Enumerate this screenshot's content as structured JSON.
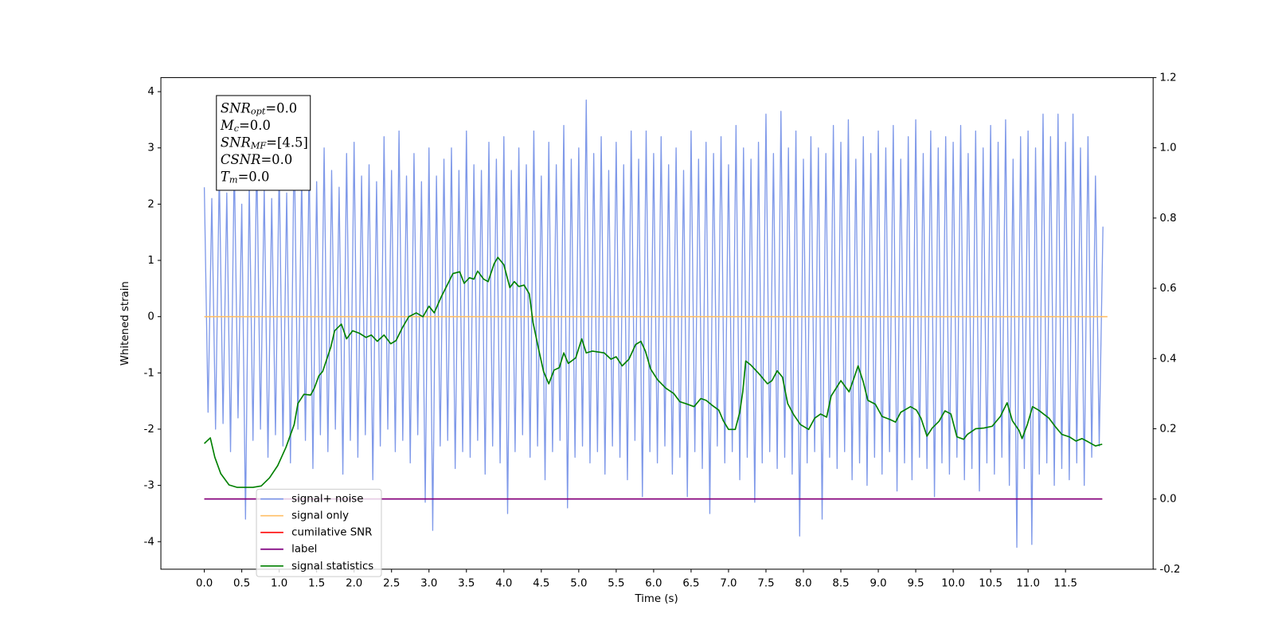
{
  "chart_data": {
    "type": "line",
    "xlabel": "Time (s)",
    "ylabel": "Whitened strain",
    "xlim": [
      -0.58,
      12.67
    ],
    "ylim": [
      -4.49,
      4.25
    ],
    "y2lim": [
      -0.2,
      1.2
    ],
    "xticks": [
      {
        "value": 0,
        "label": "0.0"
      },
      {
        "value": 0.5,
        "label": "0.5"
      },
      {
        "value": 1,
        "label": "1.0"
      },
      {
        "value": 1.5,
        "label": "1.5"
      },
      {
        "value": 2,
        "label": "2.0"
      },
      {
        "value": 2.5,
        "label": "2.5"
      },
      {
        "value": 3,
        "label": "3.0"
      },
      {
        "value": 3.5,
        "label": "3.5"
      },
      {
        "value": 4,
        "label": "4.0"
      },
      {
        "value": 4.5,
        "label": "4.5"
      },
      {
        "value": 5,
        "label": "5.0"
      },
      {
        "value": 5.5,
        "label": "5.5"
      },
      {
        "value": 6,
        "label": "6.0"
      },
      {
        "value": 6.5,
        "label": "6.5"
      },
      {
        "value": 7,
        "label": "7.0"
      },
      {
        "value": 7.5,
        "label": "7.5"
      },
      {
        "value": 8,
        "label": "8.0"
      },
      {
        "value": 8.5,
        "label": "8.5"
      },
      {
        "value": 9,
        "label": "9.0"
      },
      {
        "value": 9.5,
        "label": "9.5"
      },
      {
        "value": 10,
        "label": "10.0"
      },
      {
        "value": 10.5,
        "label": "10.5"
      },
      {
        "value": 11,
        "label": "11.0"
      },
      {
        "value": 11.5,
        "label": "11.5"
      }
    ],
    "yticks": [
      -4,
      -3,
      -2,
      -1,
      0,
      1,
      2,
      3,
      4
    ],
    "y2ticks": [
      -0.2,
      {
        "value": 0,
        "label": "0.0"
      },
      0.2,
      0.4,
      0.6,
      0.8,
      {
        "value": 1,
        "label": "1.0"
      },
      1.2
    ],
    "annotations": [
      {
        "symbol": "SNR",
        "subscript": "opt",
        "text": "=0.0"
      },
      {
        "symbol": "M",
        "subscript": "c",
        "text": "=0.0"
      },
      {
        "symbol": "SNR",
        "subscript": "MF",
        "text": "=[4.5]"
      },
      {
        "symbol": "CSNR",
        "text": "=0.0"
      },
      {
        "symbol": "T",
        "subscript": "m",
        "text": "=0.0"
      }
    ],
    "series": [
      {
        "name": "signal+ noise",
        "color": "#7893e8",
        "x": [
          0,
          0.05,
          0.1,
          0.15,
          0.2,
          0.25,
          0.3,
          0.35,
          0.4,
          0.45,
          0.5,
          0.55,
          0.6,
          0.65,
          0.7,
          0.75,
          0.8,
          0.85,
          0.9,
          0.95,
          1,
          1.05,
          1.1,
          1.15,
          1.2,
          1.25,
          1.3,
          1.35,
          1.4,
          1.45,
          1.5,
          1.55,
          1.6,
          1.65,
          1.7,
          1.75,
          1.8,
          1.85,
          1.9,
          1.95,
          2,
          2.05,
          2.1,
          2.15,
          2.2,
          2.25,
          2.3,
          2.35,
          2.4,
          2.45,
          2.5,
          2.55,
          2.6,
          2.65,
          2.7,
          2.75,
          2.8,
          2.85,
          2.9,
          2.95,
          3,
          3.05,
          3.1,
          3.15,
          3.2,
          3.25,
          3.3,
          3.35,
          3.4,
          3.45,
          3.5,
          3.55,
          3.6,
          3.65,
          3.7,
          3.75,
          3.8,
          3.85,
          3.9,
          3.95,
          4,
          4.05,
          4.1,
          4.15,
          4.2,
          4.25,
          4.3,
          4.35,
          4.4,
          4.45,
          4.5,
          4.55,
          4.6,
          4.65,
          4.7,
          4.75,
          4.8,
          4.85,
          4.9,
          4.95,
          5,
          5.05,
          5.1,
          5.15,
          5.2,
          5.25,
          5.3,
          5.35,
          5.4,
          5.45,
          5.5,
          5.55,
          5.6,
          5.65,
          5.7,
          5.75,
          5.8,
          5.85,
          5.9,
          5.95,
          6,
          6.05,
          6.1,
          6.15,
          6.2,
          6.25,
          6.3,
          6.35,
          6.4,
          6.45,
          6.5,
          6.55,
          6.6,
          6.65,
          6.7,
          6.75,
          6.8,
          6.85,
          6.9,
          6.95,
          7,
          7.05,
          7.1,
          7.15,
          7.2,
          7.25,
          7.3,
          7.35,
          7.4,
          7.45,
          7.5,
          7.55,
          7.6,
          7.65,
          7.7,
          7.75,
          7.8,
          7.85,
          7.9,
          7.95,
          8,
          8.05,
          8.1,
          8.15,
          8.2,
          8.25,
          8.3,
          8.35,
          8.4,
          8.45,
          8.5,
          8.55,
          8.6,
          8.65,
          8.7,
          8.75,
          8.8,
          8.85,
          8.9,
          8.95,
          9,
          9.05,
          9.1,
          9.15,
          9.2,
          9.25,
          9.3,
          9.35,
          9.4,
          9.45,
          9.5,
          9.55,
          9.6,
          9.65,
          9.7,
          9.75,
          9.8,
          9.85,
          9.9,
          9.95,
          10,
          10.05,
          10.1,
          10.15,
          10.2,
          10.25,
          10.3,
          10.35,
          10.4,
          10.45,
          10.5,
          10.55,
          10.6,
          10.65,
          10.7,
          10.75,
          10.8,
          10.85,
          10.9,
          10.95,
          11,
          11.05,
          11.1,
          11.15,
          11.2,
          11.25,
          11.3,
          11.35,
          11.4,
          11.45,
          11.5,
          11.55,
          11.6,
          11.65,
          11.7,
          11.75,
          11.8,
          11.85,
          11.9,
          11.95,
          12
        ],
        "values": [
          2.3,
          -1.7,
          2.1,
          -2.0,
          2.6,
          -1.9,
          2.2,
          -2.4,
          2.8,
          -1.8,
          2.0,
          -3.6,
          2.4,
          -2.2,
          2.9,
          -2.0,
          2.3,
          -2.5,
          2.1,
          -2.1,
          2.7,
          -2.3,
          2.2,
          -2.6,
          3.2,
          -2.0,
          2.5,
          -2.2,
          2.8,
          -2.7,
          2.4,
          -2.1,
          3.0,
          -2.4,
          2.6,
          -2.0,
          2.3,
          -2.8,
          2.9,
          -2.2,
          3.1,
          -2.5,
          2.5,
          -2.1,
          2.7,
          -2.9,
          2.4,
          -2.3,
          3.2,
          -2.0,
          2.6,
          -2.4,
          3.3,
          -2.2,
          2.5,
          -2.6,
          2.9,
          -2.1,
          2.4,
          -3.3,
          3.0,
          -3.8,
          2.5,
          -2.3,
          2.8,
          -2.2,
          3.0,
          -2.7,
          2.6,
          -2.4,
          3.3,
          -2.5,
          2.7,
          -2.2,
          2.6,
          -2.8,
          3.1,
          -2.3,
          2.8,
          -2.6,
          3.2,
          -3.5,
          2.6,
          -2.4,
          3.0,
          -2.1,
          2.7,
          -2.5,
          3.3,
          -2.3,
          2.5,
          -2.9,
          3.1,
          -2.4,
          2.7,
          -2.2,
          3.4,
          -3.4,
          2.8,
          -2.5,
          3.0,
          -2.3,
          3.85,
          -2.6,
          2.9,
          -2.4,
          3.2,
          -2.8,
          2.6,
          -2.3,
          3.1,
          -2.5,
          2.7,
          -2.9,
          3.3,
          -2.2,
          2.8,
          -3.2,
          3.3,
          -2.4,
          2.9,
          -2.6,
          3.2,
          -2.3,
          2.7,
          -2.8,
          3.0,
          -2.5,
          2.6,
          -3.2,
          3.3,
          -2.4,
          2.8,
          -2.7,
          3.1,
          -3.5,
          2.9,
          -2.3,
          3.2,
          -2.6,
          2.7,
          -2.4,
          3.4,
          -2.9,
          3.0,
          -2.5,
          2.8,
          -3.3,
          3.1,
          -2.6,
          3.6,
          -2.4,
          2.9,
          -2.7,
          3.65,
          -2.5,
          3.0,
          -2.8,
          3.3,
          -3.9,
          2.8,
          -2.6,
          3.2,
          -2.4,
          3.0,
          -3.6,
          2.9,
          -2.5,
          3.4,
          -2.7,
          3.1,
          -2.4,
          3.5,
          -2.9,
          2.8,
          -2.6,
          3.2,
          -3.0,
          2.9,
          -2.5,
          3.3,
          -2.8,
          3.0,
          -2.4,
          3.4,
          -3.1,
          2.8,
          -2.6,
          3.2,
          -2.9,
          3.5,
          -2.5,
          2.9,
          -2.7,
          3.3,
          -3.2,
          3.0,
          -2.6,
          3.2,
          -2.8,
          3.1,
          -2.5,
          3.4,
          -2.9,
          2.9,
          -2.7,
          3.3,
          -3.1,
          3.0,
          -2.6,
          3.4,
          -2.8,
          3.1,
          -2.5,
          3.5,
          -3.0,
          2.8,
          -4.1,
          3.2,
          -2.7,
          3.3,
          -4.05,
          3.0,
          -2.8,
          3.6,
          -2.6,
          3.2,
          -3.0,
          3.6,
          -2.7,
          3.1,
          -2.9,
          3.6,
          -2.6,
          3.0,
          -3.0,
          3.2,
          -2.5,
          2.5,
          -2.3,
          1.6
        ]
      },
      {
        "name": "signal only",
        "color": "#ffbf66",
        "x": [
          0,
          12.06
        ],
        "values": [
          0,
          0
        ]
      },
      {
        "name": "cumilative SNR",
        "color": "#ff0000",
        "axis": "y2",
        "x": [
          0,
          11.99
        ],
        "values": [
          0,
          0
        ]
      },
      {
        "name": "label",
        "color": "#800080",
        "axis": "y2",
        "x": [
          0,
          11.99
        ],
        "values": [
          0,
          0
        ]
      },
      {
        "name": "signal statistics",
        "color": "#008000",
        "axis": "y2",
        "x": [
          0,
          0.08,
          0.14,
          0.22,
          0.33,
          0.44,
          0.65,
          0.76,
          0.87,
          0.98,
          1.09,
          1.2,
          1.25,
          1.33,
          1.42,
          1.47,
          1.53,
          1.58,
          1.69,
          1.74,
          1.83,
          1.9,
          1.98,
          2.07,
          2.16,
          2.23,
          2.31,
          2.4,
          2.49,
          2.56,
          2.64,
          2.73,
          2.83,
          2.92,
          3,
          3.07,
          3.16,
          3.25,
          3.32,
          3.41,
          3.47,
          3.54,
          3.6,
          3.65,
          3.73,
          3.79,
          3.87,
          3.92,
          4,
          4.08,
          4.14,
          4.2,
          4.27,
          4.34,
          4.39,
          4.47,
          4.53,
          4.6,
          4.67,
          4.74,
          4.8,
          4.86,
          4.96,
          5.04,
          5.1,
          5.18,
          5.34,
          5.43,
          5.5,
          5.58,
          5.67,
          5.76,
          5.83,
          5.89,
          5.96,
          6.05,
          6.16,
          6.27,
          6.35,
          6.45,
          6.54,
          6.63,
          6.7,
          6.78,
          6.87,
          6.93,
          7,
          7.09,
          7.15,
          7.19,
          7.23,
          7.3,
          7.41,
          7.52,
          7.58,
          7.65,
          7.72,
          7.79,
          7.87,
          7.96,
          8.07,
          8.15,
          8.23,
          8.31,
          8.37,
          8.5,
          8.61,
          8.68,
          8.73,
          8.8,
          8.86,
          8.96,
          9.05,
          9.16,
          9.23,
          9.3,
          9.43,
          9.51,
          9.57,
          9.65,
          9.72,
          9.81,
          9.89,
          9.97,
          10.05,
          10.14,
          10.19,
          10.3,
          10.41,
          10.52,
          10.63,
          10.72,
          10.79,
          10.88,
          10.92,
          10.99,
          11.06,
          11.14,
          11.28,
          11.36,
          11.45,
          11.55,
          11.64,
          11.72,
          11.8,
          11.9,
          11.99
        ],
        "values": [
          0.158,
          0.174,
          0.119,
          0.072,
          0.04,
          0.033,
          0.033,
          0.037,
          0.06,
          0.095,
          0.147,
          0.212,
          0.272,
          0.298,
          0.296,
          0.316,
          0.351,
          0.363,
          0.433,
          0.479,
          0.498,
          0.456,
          0.479,
          0.472,
          0.46,
          0.467,
          0.449,
          0.467,
          0.442,
          0.451,
          0.486,
          0.519,
          0.53,
          0.519,
          0.549,
          0.53,
          0.574,
          0.612,
          0.642,
          0.647,
          0.614,
          0.63,
          0.626,
          0.649,
          0.626,
          0.619,
          0.67,
          0.688,
          0.667,
          0.602,
          0.619,
          0.605,
          0.609,
          0.584,
          0.502,
          0.421,
          0.363,
          0.328,
          0.367,
          0.374,
          0.416,
          0.386,
          0.402,
          0.456,
          0.416,
          0.421,
          0.416,
          0.398,
          0.405,
          0.379,
          0.398,
          0.44,
          0.449,
          0.421,
          0.37,
          0.34,
          0.316,
          0.3,
          0.277,
          0.27,
          0.263,
          0.286,
          0.281,
          0.267,
          0.253,
          0.223,
          0.198,
          0.198,
          0.247,
          0.305,
          0.393,
          0.381,
          0.356,
          0.328,
          0.337,
          0.365,
          0.347,
          0.272,
          0.24,
          0.212,
          0.198,
          0.23,
          0.242,
          0.233,
          0.293,
          0.337,
          0.305,
          0.347,
          0.379,
          0.333,
          0.281,
          0.27,
          0.235,
          0.226,
          0.219,
          0.247,
          0.263,
          0.253,
          0.23,
          0.179,
          0.202,
          0.221,
          0.251,
          0.242,
          0.177,
          0.17,
          0.184,
          0.2,
          0.202,
          0.207,
          0.235,
          0.274,
          0.223,
          0.195,
          0.172,
          0.212,
          0.263,
          0.253,
          0.23,
          0.207,
          0.184,
          0.177,
          0.165,
          0.172,
          0.163,
          0.151,
          0.156
        ]
      }
    ]
  }
}
